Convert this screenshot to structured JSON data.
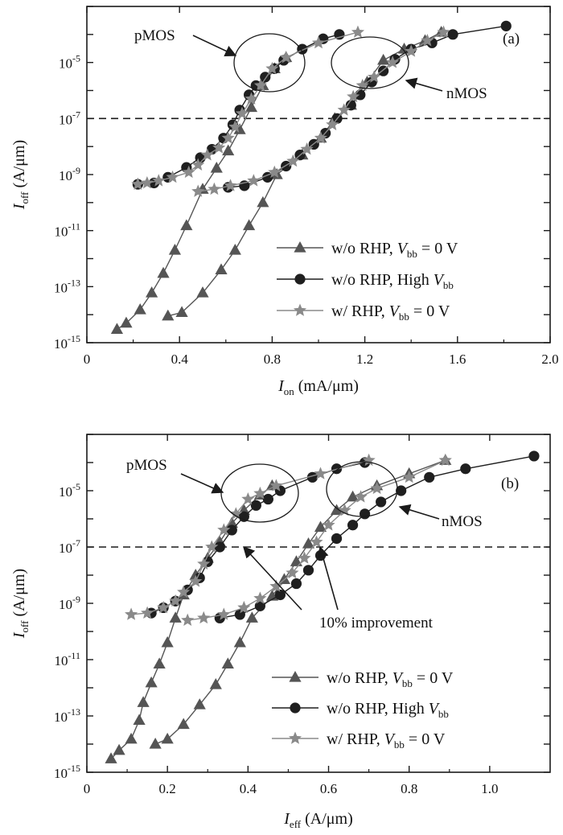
{
  "colors": {
    "triangle_series": "#555555",
    "circle_series": "#1f1f1f",
    "star_series": "#8a8a8a",
    "axis": "#1a1a1a"
  },
  "chart_data": [
    {
      "panel": "(a)",
      "type": "scatter",
      "xlabel": "I_on (mA/μm)",
      "xlabel_main": "I",
      "xlabel_sub": "on",
      "xlabel_unit": " (mA/μm)",
      "ylabel_main": "I",
      "ylabel_sub": "off",
      "ylabel_unit": " (A/μm)",
      "y_scale": "log",
      "xlim": [
        0,
        2.0
      ],
      "ylim": [
        1e-15,
        0.001
      ],
      "x_ticks": [
        "0",
        "0.4",
        "0.8",
        "1.2",
        "1.6",
        "2.0"
      ],
      "y_ticks": [
        {
          "base": "10",
          "exp": "-15"
        },
        {
          "base": "10",
          "exp": "-13"
        },
        {
          "base": "10",
          "exp": "-11"
        },
        {
          "base": "10",
          "exp": "-9"
        },
        {
          "base": "10",
          "exp": "-7"
        },
        {
          "base": "10",
          "exp": "-5"
        }
      ],
      "reference_line_y": 1e-07,
      "annotations": [
        {
          "text": "pMOS",
          "role": "label"
        },
        {
          "text": "nMOS",
          "role": "label"
        },
        {
          "text": "(a)",
          "role": "panel-label"
        }
      ],
      "legend_position": "bottom-right",
      "series": [
        {
          "name": "w/o RHP, V_bb = 0 V",
          "legend_main": "w/o RHP, ",
          "legend_var": "V",
          "legend_sub": "bb",
          "legend_tail": " = 0 V",
          "marker": "triangle",
          "color": "#555555",
          "groups": [
            [
              [
                0.13,
                3e-15
              ],
              [
                0.17,
                5e-15
              ],
              [
                0.23,
                1.5e-14
              ],
              [
                0.28,
                6e-14
              ],
              [
                0.33,
                3e-13
              ],
              [
                0.38,
                2e-12
              ],
              [
                0.43,
                1.5e-11
              ],
              [
                0.5,
                3e-10
              ],
              [
                0.56,
                1.7e-09
              ],
              [
                0.61,
                7e-09
              ],
              [
                0.66,
                4e-08
              ],
              [
                0.71,
                2.5e-07
              ],
              [
                0.76,
                1.5e-06
              ],
              [
                0.81,
                6e-06
              ],
              [
                0.86,
                1.5e-05
              ]
            ],
            [
              [
                0.35,
                9e-15
              ],
              [
                0.41,
                1.2e-14
              ],
              [
                0.5,
                6e-14
              ],
              [
                0.58,
                4e-13
              ],
              [
                0.64,
                2e-12
              ],
              [
                0.7,
                1.5e-11
              ],
              [
                0.76,
                1e-10
              ],
              [
                0.82,
                1e-09
              ],
              [
                0.93,
                5e-09
              ],
              [
                1.01,
                2e-08
              ],
              [
                1.07,
                1e-07
              ],
              [
                1.14,
                3e-07
              ],
              [
                1.21,
                2e-06
              ],
              [
                1.28,
                1.2e-05
              ],
              [
                1.37,
                3e-05
              ],
              [
                1.46,
                6e-05
              ],
              [
                1.53,
                0.00012
              ]
            ]
          ]
        },
        {
          "name": "w/o RHP, High V_bb",
          "legend_main": "w/o RHP, High ",
          "legend_var": "V",
          "legend_sub": "bb",
          "legend_tail": "",
          "marker": "circle",
          "color": "#1f1f1f",
          "groups": [
            [
              [
                0.22,
                4.5e-10
              ],
              [
                0.29,
                5e-10
              ],
              [
                0.35,
                8e-10
              ],
              [
                0.43,
                1.8e-09
              ],
              [
                0.49,
                4e-09
              ],
              [
                0.54,
                8e-09
              ],
              [
                0.59,
                2e-08
              ],
              [
                0.63,
                6e-08
              ],
              [
                0.66,
                2e-07
              ],
              [
                0.7,
                7e-07
              ],
              [
                0.73,
                1.5e-06
              ],
              [
                0.77,
                3e-06
              ],
              [
                0.81,
                6e-06
              ],
              [
                0.85,
                1.2e-05
              ],
              [
                0.93,
                3e-05
              ],
              [
                1.02,
                7e-05
              ],
              [
                1.09,
                0.0001
              ]
            ],
            [
              [
                0.61,
                3.5e-10
              ],
              [
                0.68,
                4e-10
              ],
              [
                0.78,
                8e-10
              ],
              [
                0.86,
                2e-09
              ],
              [
                0.92,
                5e-09
              ],
              [
                0.98,
                1.2e-08
              ],
              [
                1.03,
                3e-08
              ],
              [
                1.08,
                1e-07
              ],
              [
                1.14,
                3e-07
              ],
              [
                1.18,
                7e-07
              ],
              [
                1.23,
                2e-06
              ],
              [
                1.28,
                5e-06
              ],
              [
                1.33,
                1.3e-05
              ],
              [
                1.4,
                3e-05
              ],
              [
                1.49,
                5e-05
              ],
              [
                1.58,
                0.0001
              ],
              [
                1.81,
                0.0002
              ]
            ]
          ]
        },
        {
          "name": "w/ RHP, V_bb = 0 V",
          "legend_main": "w/ RHP, ",
          "legend_var": "V",
          "legend_sub": "bb",
          "legend_tail": " = 0 V",
          "marker": "star",
          "color": "#8a8a8a",
          "groups": [
            [
              [
                0.22,
                4.5e-10
              ],
              [
                0.26,
                5e-10
              ],
              [
                0.31,
                6e-10
              ],
              [
                0.37,
                8e-10
              ],
              [
                0.44,
                1.2e-09
              ],
              [
                0.48,
                2.2e-09
              ],
              [
                0.52,
                5e-09
              ],
              [
                0.57,
                9e-09
              ],
              [
                0.61,
                2e-08
              ],
              [
                0.64,
                5e-08
              ],
              [
                0.67,
                1.5e-07
              ],
              [
                0.71,
                5e-07
              ],
              [
                0.75,
                1.5e-06
              ],
              [
                0.8,
                6e-06
              ],
              [
                0.86,
                1.5e-05
              ],
              [
                1.0,
                5e-05
              ],
              [
                1.17,
                0.00012
              ]
            ],
            [
              [
                0.48,
                2.5e-10
              ],
              [
                0.55,
                3e-10
              ],
              [
                0.62,
                4e-10
              ],
              [
                0.72,
                6e-10
              ],
              [
                0.81,
                1.2e-09
              ],
              [
                0.89,
                3e-09
              ],
              [
                0.95,
                8e-09
              ],
              [
                1.01,
                2e-08
              ],
              [
                1.06,
                6e-08
              ],
              [
                1.11,
                2e-07
              ],
              [
                1.15,
                6e-07
              ],
              [
                1.19,
                1.5e-06
              ],
              [
                1.24,
                3e-06
              ],
              [
                1.32,
                1e-05
              ],
              [
                1.4,
                2.5e-05
              ],
              [
                1.47,
                6e-05
              ],
              [
                1.54,
                0.00012
              ]
            ]
          ]
        }
      ]
    },
    {
      "panel": "(b)",
      "type": "scatter",
      "xlabel": "I_eff (A/μm)",
      "xlabel_main": "I",
      "xlabel_sub": "eff",
      "xlabel_unit": " (A/μm)",
      "ylabel_main": "I",
      "ylabel_sub": "off",
      "ylabel_unit": " (A/μm)",
      "y_scale": "log",
      "xlim": [
        0,
        1.15
      ],
      "ylim": [
        1e-15,
        0.001
      ],
      "x_ticks": [
        "0",
        "0.2",
        "0.4",
        "0.6",
        "0.8",
        "1.0"
      ],
      "y_ticks": [
        {
          "base": "10",
          "exp": "-15"
        },
        {
          "base": "10",
          "exp": "-13"
        },
        {
          "base": "10",
          "exp": "-11"
        },
        {
          "base": "10",
          "exp": "-9"
        },
        {
          "base": "10",
          "exp": "-7"
        },
        {
          "base": "10",
          "exp": "-5"
        }
      ],
      "reference_line_y": 1e-07,
      "annotations": [
        {
          "text": "pMOS",
          "role": "label"
        },
        {
          "text": "nMOS",
          "role": "label"
        },
        {
          "text": "(b)",
          "role": "panel-label"
        },
        {
          "text": "10% improvement",
          "role": "label"
        }
      ],
      "legend_position": "bottom-right",
      "series": [
        {
          "name": "w/o RHP, V_bb = 0 V",
          "legend_main": "w/o RHP, ",
          "legend_var": "V",
          "legend_sub": "bb",
          "legend_tail": " = 0 V",
          "marker": "triangle",
          "color": "#555555",
          "groups": [
            [
              [
                0.06,
                3e-15
              ],
              [
                0.08,
                6e-15
              ],
              [
                0.11,
                1.5e-14
              ],
              [
                0.13,
                7e-14
              ],
              [
                0.14,
                3e-13
              ],
              [
                0.16,
                1.5e-12
              ],
              [
                0.18,
                7e-12
              ],
              [
                0.2,
                4e-11
              ],
              [
                0.22,
                3e-10
              ],
              [
                0.24,
                2e-09
              ],
              [
                0.27,
                1e-08
              ],
              [
                0.3,
                4e-08
              ],
              [
                0.33,
                1.5e-07
              ],
              [
                0.36,
                7e-07
              ],
              [
                0.39,
                2e-06
              ],
              [
                0.43,
                7e-06
              ],
              [
                0.46,
                1.5e-05
              ]
            ],
            [
              [
                0.17,
                1e-14
              ],
              [
                0.2,
                1.5e-14
              ],
              [
                0.24,
                5e-14
              ],
              [
                0.28,
                2.5e-13
              ],
              [
                0.32,
                1.3e-12
              ],
              [
                0.35,
                7e-12
              ],
              [
                0.38,
                4e-11
              ],
              [
                0.41,
                3e-10
              ],
              [
                0.46,
                1.8e-09
              ],
              [
                0.49,
                7e-09
              ],
              [
                0.52,
                3e-08
              ],
              [
                0.55,
                1.3e-07
              ],
              [
                0.58,
                5e-07
              ],
              [
                0.62,
                2e-06
              ],
              [
                0.66,
                6e-06
              ],
              [
                0.72,
                1.5e-05
              ],
              [
                0.8,
                4e-05
              ],
              [
                0.89,
                0.00012
              ]
            ]
          ]
        },
        {
          "name": "w/o RHP, High V_bb",
          "legend_main": "w/o RHP, High ",
          "legend_var": "V",
          "legend_sub": "bb",
          "legend_tail": "",
          "marker": "circle",
          "color": "#1f1f1f",
          "groups": [
            [
              [
                0.16,
                4.5e-10
              ],
              [
                0.19,
                7e-10
              ],
              [
                0.22,
                1.2e-09
              ],
              [
                0.25,
                3e-09
              ],
              [
                0.28,
                8e-09
              ],
              [
                0.3,
                3e-08
              ],
              [
                0.33,
                1e-07
              ],
              [
                0.36,
                4e-07
              ],
              [
                0.39,
                1.2e-06
              ],
              [
                0.42,
                3e-06
              ],
              [
                0.45,
                5e-06
              ],
              [
                0.48,
                1e-05
              ],
              [
                0.56,
                3e-05
              ],
              [
                0.62,
                6e-05
              ],
              [
                0.69,
                0.0001
              ]
            ],
            [
              [
                0.33,
                3e-10
              ],
              [
                0.38,
                4e-10
              ],
              [
                0.43,
                8e-10
              ],
              [
                0.48,
                2e-09
              ],
              [
                0.52,
                5e-09
              ],
              [
                0.55,
                1.5e-08
              ],
              [
                0.58,
                5e-08
              ],
              [
                0.62,
                2e-07
              ],
              [
                0.66,
                6e-07
              ],
              [
                0.69,
                1.5e-06
              ],
              [
                0.73,
                4e-06
              ],
              [
                0.78,
                1e-05
              ],
              [
                0.85,
                3e-05
              ],
              [
                0.94,
                6e-05
              ],
              [
                1.11,
                0.00017
              ]
            ]
          ]
        },
        {
          "name": "w/ RHP, V_bb = 0 V",
          "legend_main": "w/ RHP, ",
          "legend_var": "V",
          "legend_sub": "bb",
          "legend_tail": " = 0 V",
          "marker": "star",
          "color": "#8a8a8a",
          "groups": [
            [
              [
                0.11,
                4e-10
              ],
              [
                0.15,
                4.5e-10
              ],
              [
                0.19,
                7e-10
              ],
              [
                0.22,
                1.2e-09
              ],
              [
                0.24,
                2.5e-09
              ],
              [
                0.27,
                6e-09
              ],
              [
                0.29,
                2.5e-08
              ],
              [
                0.31,
                1e-07
              ],
              [
                0.34,
                4e-07
              ],
              [
                0.37,
                1.5e-06
              ],
              [
                0.4,
                5e-06
              ],
              [
                0.43,
                8e-06
              ],
              [
                0.47,
                1.5e-05
              ],
              [
                0.58,
                4e-05
              ],
              [
                0.7,
                0.00012
              ]
            ],
            [
              [
                0.25,
                2.5e-10
              ],
              [
                0.29,
                3e-10
              ],
              [
                0.34,
                4e-10
              ],
              [
                0.39,
                7e-10
              ],
              [
                0.43,
                1.5e-09
              ],
              [
                0.47,
                4e-09
              ],
              [
                0.51,
                1.2e-08
              ],
              [
                0.54,
                4e-08
              ],
              [
                0.57,
                1.5e-07
              ],
              [
                0.6,
                6e-07
              ],
              [
                0.64,
                2e-06
              ],
              [
                0.68,
                6e-06
              ],
              [
                0.72,
                1.2e-05
              ],
              [
                0.8,
                3e-05
              ],
              [
                0.89,
                0.00012
              ]
            ]
          ]
        }
      ]
    }
  ]
}
